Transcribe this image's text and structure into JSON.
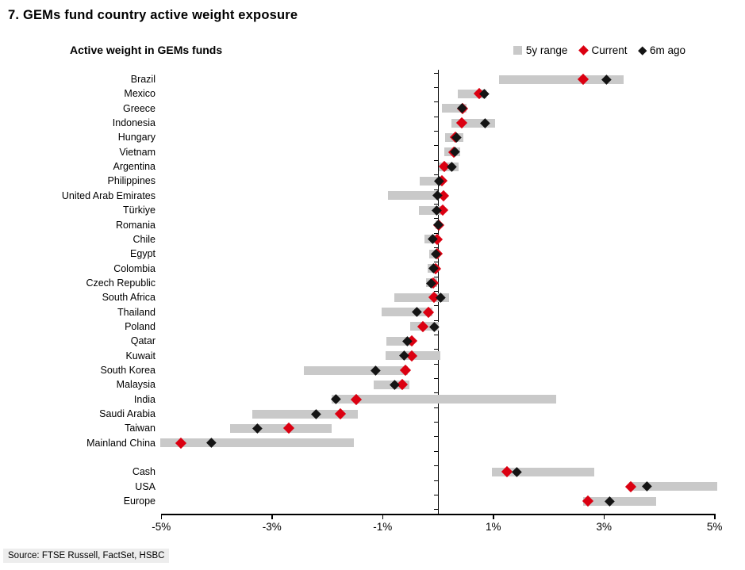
{
  "title": "7. GEMs fund country active weight exposure",
  "subtitle": "Active weight in GEMs funds",
  "legend": {
    "range_label": "5y range",
    "current_label": "Current",
    "six_m_label": "6m ago"
  },
  "source": "Source: FTSE Russell, FactSet, HSBC",
  "colors": {
    "range_gray": "#c9c9c9",
    "current_red": "#db0011",
    "six_m_black": "#141414",
    "axis_black": "#000000",
    "source_bg": "#ededed"
  },
  "chart_data": {
    "type": "range-dot",
    "title": "Active weight in GEMs funds",
    "series": [
      "5y range",
      "Current",
      "6m ago"
    ],
    "unit": "%",
    "x_ticks": [
      "-5%",
      "-3%",
      "-1%",
      "1%",
      "3%",
      "5%"
    ],
    "x_tick_values": [
      -5,
      -3,
      -1,
      1,
      3,
      5
    ],
    "xlim": [
      -5.2,
      5.2
    ],
    "legend_position": "top-right",
    "rows": [
      {
        "label": "Brazil",
        "range": [
          1.1,
          3.35
        ],
        "current": 2.62,
        "six_m_ago": 3.05
      },
      {
        "label": "Mexico",
        "range": [
          0.36,
          0.88
        ],
        "current": 0.74,
        "six_m_ago": 0.84
      },
      {
        "label": "Greece",
        "range": [
          0.07,
          0.52
        ],
        "current": 0.44,
        "six_m_ago": 0.43
      },
      {
        "label": "Indonesia",
        "range": [
          0.25,
          1.03
        ],
        "current": 0.43,
        "six_m_ago": 0.85
      },
      {
        "label": "Hungary",
        "range": [
          0.13,
          0.46
        ],
        "current": 0.32,
        "six_m_ago": 0.34
      },
      {
        "label": "Vietnam",
        "range": [
          0.12,
          0.4
        ],
        "current": 0.29,
        "six_m_ago": 0.3
      },
      {
        "label": "Argentina",
        "range": [
          0.01,
          0.38
        ],
        "current": 0.12,
        "six_m_ago": 0.25
      },
      {
        "label": "Philippines",
        "range": [
          -0.33,
          0.06
        ],
        "current": 0.07,
        "six_m_ago": 0.02
      },
      {
        "label": "United Arab Emirates",
        "range": [
          -0.9,
          0.0
        ],
        "current": 0.1,
        "six_m_ago": -0.01
      },
      {
        "label": "Türkiye",
        "range": [
          -0.34,
          0.06
        ],
        "current": 0.08,
        "six_m_ago": -0.02
      },
      {
        "label": "Romania",
        "range": [
          -0.05,
          0.03
        ],
        "current": 0.01,
        "six_m_ago": 0.0
      },
      {
        "label": "Chile",
        "range": [
          -0.25,
          0.02
        ],
        "current": -0.01,
        "six_m_ago": -0.09
      },
      {
        "label": "Egypt",
        "range": [
          -0.16,
          0.02
        ],
        "current": -0.02,
        "six_m_ago": -0.04
      },
      {
        "label": "Colombia",
        "range": [
          -0.18,
          0.0
        ],
        "current": -0.05,
        "six_m_ago": -0.08
      },
      {
        "label": "Czech Republic",
        "range": [
          -0.22,
          -0.02
        ],
        "current": -0.08,
        "six_m_ago": -0.12
      },
      {
        "label": "South Africa",
        "range": [
          -0.79,
          0.2
        ],
        "current": -0.07,
        "six_m_ago": 0.05
      },
      {
        "label": "Thailand",
        "range": [
          -1.02,
          -0.1
        ],
        "current": -0.17,
        "six_m_ago": -0.38
      },
      {
        "label": "Poland",
        "range": [
          -0.5,
          0.01
        ],
        "current": -0.27,
        "six_m_ago": -0.07
      },
      {
        "label": "Qatar",
        "range": [
          -0.93,
          -0.44
        ],
        "current": -0.48,
        "six_m_ago": -0.56
      },
      {
        "label": "Kuwait",
        "range": [
          -0.95,
          0.05
        ],
        "current": -0.48,
        "six_m_ago": -0.61
      },
      {
        "label": "South Korea",
        "range": [
          -2.42,
          -0.54
        ],
        "current": -0.59,
        "six_m_ago": -1.13
      },
      {
        "label": "Malaysia",
        "range": [
          -1.16,
          -0.52
        ],
        "current": -0.65,
        "six_m_ago": -0.79
      },
      {
        "label": "India",
        "range": [
          -1.92,
          2.14
        ],
        "current": -1.47,
        "six_m_ago": -1.85
      },
      {
        "label": "Saudi Arabia",
        "range": [
          -3.35,
          -1.45
        ],
        "current": -1.76,
        "six_m_ago": -2.2
      },
      {
        "label": "Taiwan",
        "range": [
          -3.75,
          -1.92
        ],
        "current": -2.7,
        "six_m_ago": -3.27
      },
      {
        "label": "Mainland China",
        "range": [
          -5.02,
          -1.52
        ],
        "current": -4.65,
        "six_m_ago": -4.1
      },
      {
        "label": "",
        "gap": true
      },
      {
        "label": "Cash",
        "range": [
          0.97,
          2.82
        ],
        "current": 1.25,
        "six_m_ago": 1.43
      },
      {
        "label": "USA",
        "range": [
          3.45,
          5.05
        ],
        "current": 3.49,
        "six_m_ago": 3.77
      },
      {
        "label": "Europe",
        "range": [
          2.62,
          3.95
        ],
        "current": 2.71,
        "six_m_ago": 3.1
      }
    ]
  }
}
